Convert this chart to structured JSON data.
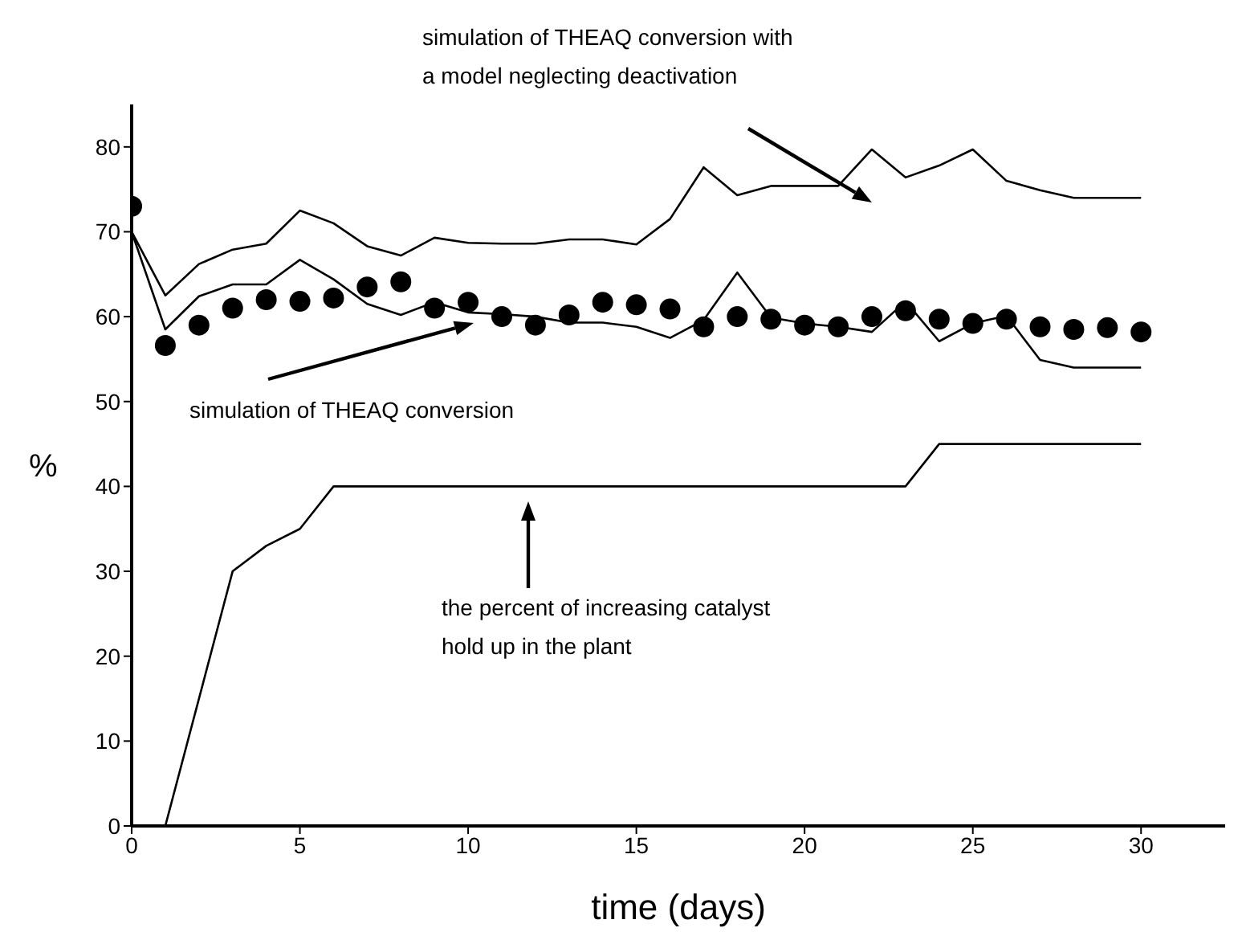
{
  "chart_data": {
    "type": "line",
    "xlabel": "time (days)",
    "ylabel": "%",
    "xlim": [
      0,
      32.5
    ],
    "xticks": [
      0,
      5,
      10,
      15,
      20,
      25,
      30
    ],
    "ylim": [
      0,
      85
    ],
    "yticks": [
      0,
      10,
      20,
      30,
      40,
      50,
      60,
      70,
      80
    ],
    "x": [
      0,
      1,
      2,
      3,
      4,
      5,
      6,
      7,
      8,
      9,
      10,
      11,
      12,
      13,
      14,
      15,
      16,
      17,
      18,
      19,
      20,
      21,
      22,
      23,
      24,
      25,
      26,
      27,
      28,
      29,
      30
    ],
    "series": [
      {
        "color": "#000000",
        "values": [
          70,
          62.5,
          66.2,
          67.9,
          68.6,
          72.5,
          71.0,
          68.3,
          67.2,
          69.3,
          68.7,
          68.6,
          68.6,
          69.1,
          69.1,
          68.5,
          71.5,
          77.6,
          74.3,
          75.4,
          75.4,
          75.4,
          79.7,
          76.4,
          77.8,
          79.7,
          76.0,
          74.9,
          74.0,
          74.0,
          74.0
        ]
      },
      {
        "color": "#000000",
        "values": [
          70,
          58.5,
          62.4,
          63.8,
          63.8,
          66.7,
          64.4,
          61.5,
          60.2,
          61.7,
          60.5,
          60.3,
          60.0,
          59.3,
          59.3,
          58.8,
          57.5,
          59.6,
          65.2,
          59.9,
          59.2,
          58.8,
          58.2,
          61.8,
          57.1,
          59.2,
          60.1,
          54.9,
          54.0,
          54.0,
          54.0
        ]
      },
      {
        "type": "scatter",
        "color": "#000000",
        "marker": "circle",
        "values": [
          73.0,
          56.6,
          59.0,
          61.0,
          62.0,
          61.8,
          62.2,
          63.5,
          64.1,
          61.0,
          61.7,
          60.0,
          59.0,
          60.2,
          61.7,
          61.4,
          60.9,
          58.8,
          60.0,
          59.7,
          59.0,
          58.8,
          60.0,
          60.7,
          59.7,
          59.2,
          59.7,
          58.8,
          58.5,
          58.7,
          58.2
        ]
      },
      {
        "color": "#000000",
        "x": [
          1,
          3,
          4,
          5,
          6,
          23,
          24,
          30
        ],
        "values": [
          0,
          30,
          33,
          35,
          40,
          40,
          45,
          45
        ]
      }
    ],
    "annotations": [
      "simulation of THEAQ conversion with\na model neglecting deactivation",
      "simulation of THEAQ conversion",
      "the percent of increasing catalyst\nhold up in the plant"
    ]
  }
}
